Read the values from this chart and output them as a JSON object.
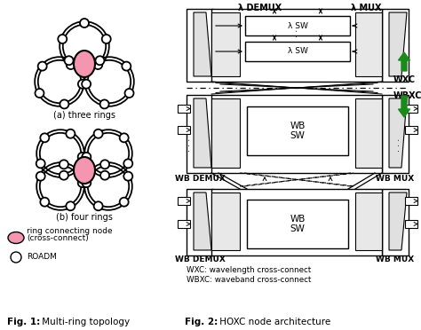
{
  "label_a": "(a) three rings",
  "label_b": "(b) four rings",
  "legend_pink_1": "ring connecting node",
  "legend_pink_2": "(cross-connect)",
  "legend_white": "ROADM",
  "wxc_label": "WXC",
  "wbxc_label": "WBXC",
  "wxc_desc": "WXC: wavelength cross-connect",
  "wbxc_desc": "WBXC: waveband cross-connect",
  "lambda_demux": "λ DEMUX",
  "lambda_mux": "λ MUX",
  "wb_demux": "WB DEMUX",
  "wb_mux": "WB MUX",
  "lambda_sw": "λ SW",
  "wb_sw": "WB\nSW",
  "fig1_bold": "Fig. 1:",
  "fig1_rest": " Multi-ring topology",
  "fig2_bold": "Fig. 2:",
  "fig2_rest": " HOXC node architecture",
  "pink_fill": "#F496B0",
  "green_color": "#1A8A1A",
  "bg_color": "#FFFFFF"
}
